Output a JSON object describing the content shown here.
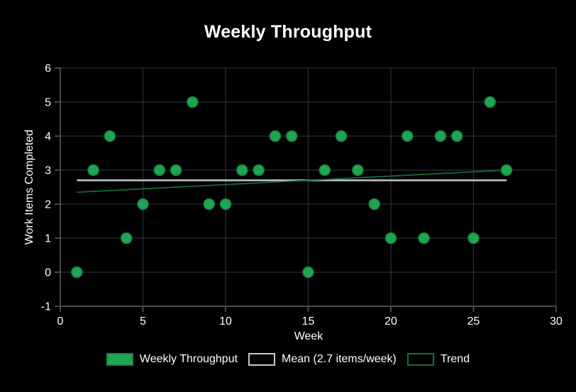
{
  "page": {
    "background": "#000000"
  },
  "chart_data": {
    "type": "scatter",
    "title": "Weekly Throughput",
    "xlabel": "Week",
    "ylabel": "Work Items Completed",
    "x": [
      1,
      2,
      3,
      4,
      5,
      6,
      7,
      8,
      9,
      10,
      11,
      12,
      13,
      14,
      15,
      16,
      17,
      18,
      19,
      20,
      21,
      22,
      23,
      24,
      25,
      26,
      27
    ],
    "y": [
      0,
      3,
      4,
      1,
      2,
      3,
      3,
      5,
      2,
      2,
      3,
      3,
      4,
      4,
      0,
      3,
      4,
      3,
      2,
      1,
      4,
      1,
      4,
      4,
      1,
      5,
      3
    ],
    "xlim": [
      0,
      30
    ],
    "ylim": [
      -1,
      6
    ],
    "x_ticks": [
      0,
      5,
      10,
      15,
      20,
      25,
      30
    ],
    "y_ticks": [
      -1,
      0,
      1,
      2,
      3,
      4,
      5,
      6
    ],
    "grid": true,
    "mean": {
      "value": 2.7,
      "x_start": 1,
      "x_end": 27
    },
    "trend": {
      "x_start": 1,
      "y_start": 2.35,
      "x_end": 27,
      "y_end": 3.0
    },
    "legend": {
      "position": "bottom",
      "entries": [
        {
          "label": "Weekly Throughput",
          "swatch_fill": "#20a552",
          "swatch_border": "#178342"
        },
        {
          "label": "Mean (2.7 items/week)",
          "swatch_fill": "#000000",
          "swatch_border": "#c3c8cd"
        },
        {
          "label": "Trend",
          "swatch_fill": "#000000",
          "swatch_border": "#156e38"
        }
      ]
    },
    "colors": {
      "background": "#000000",
      "point_fill": "#20a552",
      "point_stroke": "#12813f",
      "grid_line": "#28313b",
      "axis_line": "#414b55",
      "tick_text": "#ffffff",
      "mean_line": "#c3c8cd",
      "trend_line": "#156e38"
    }
  }
}
